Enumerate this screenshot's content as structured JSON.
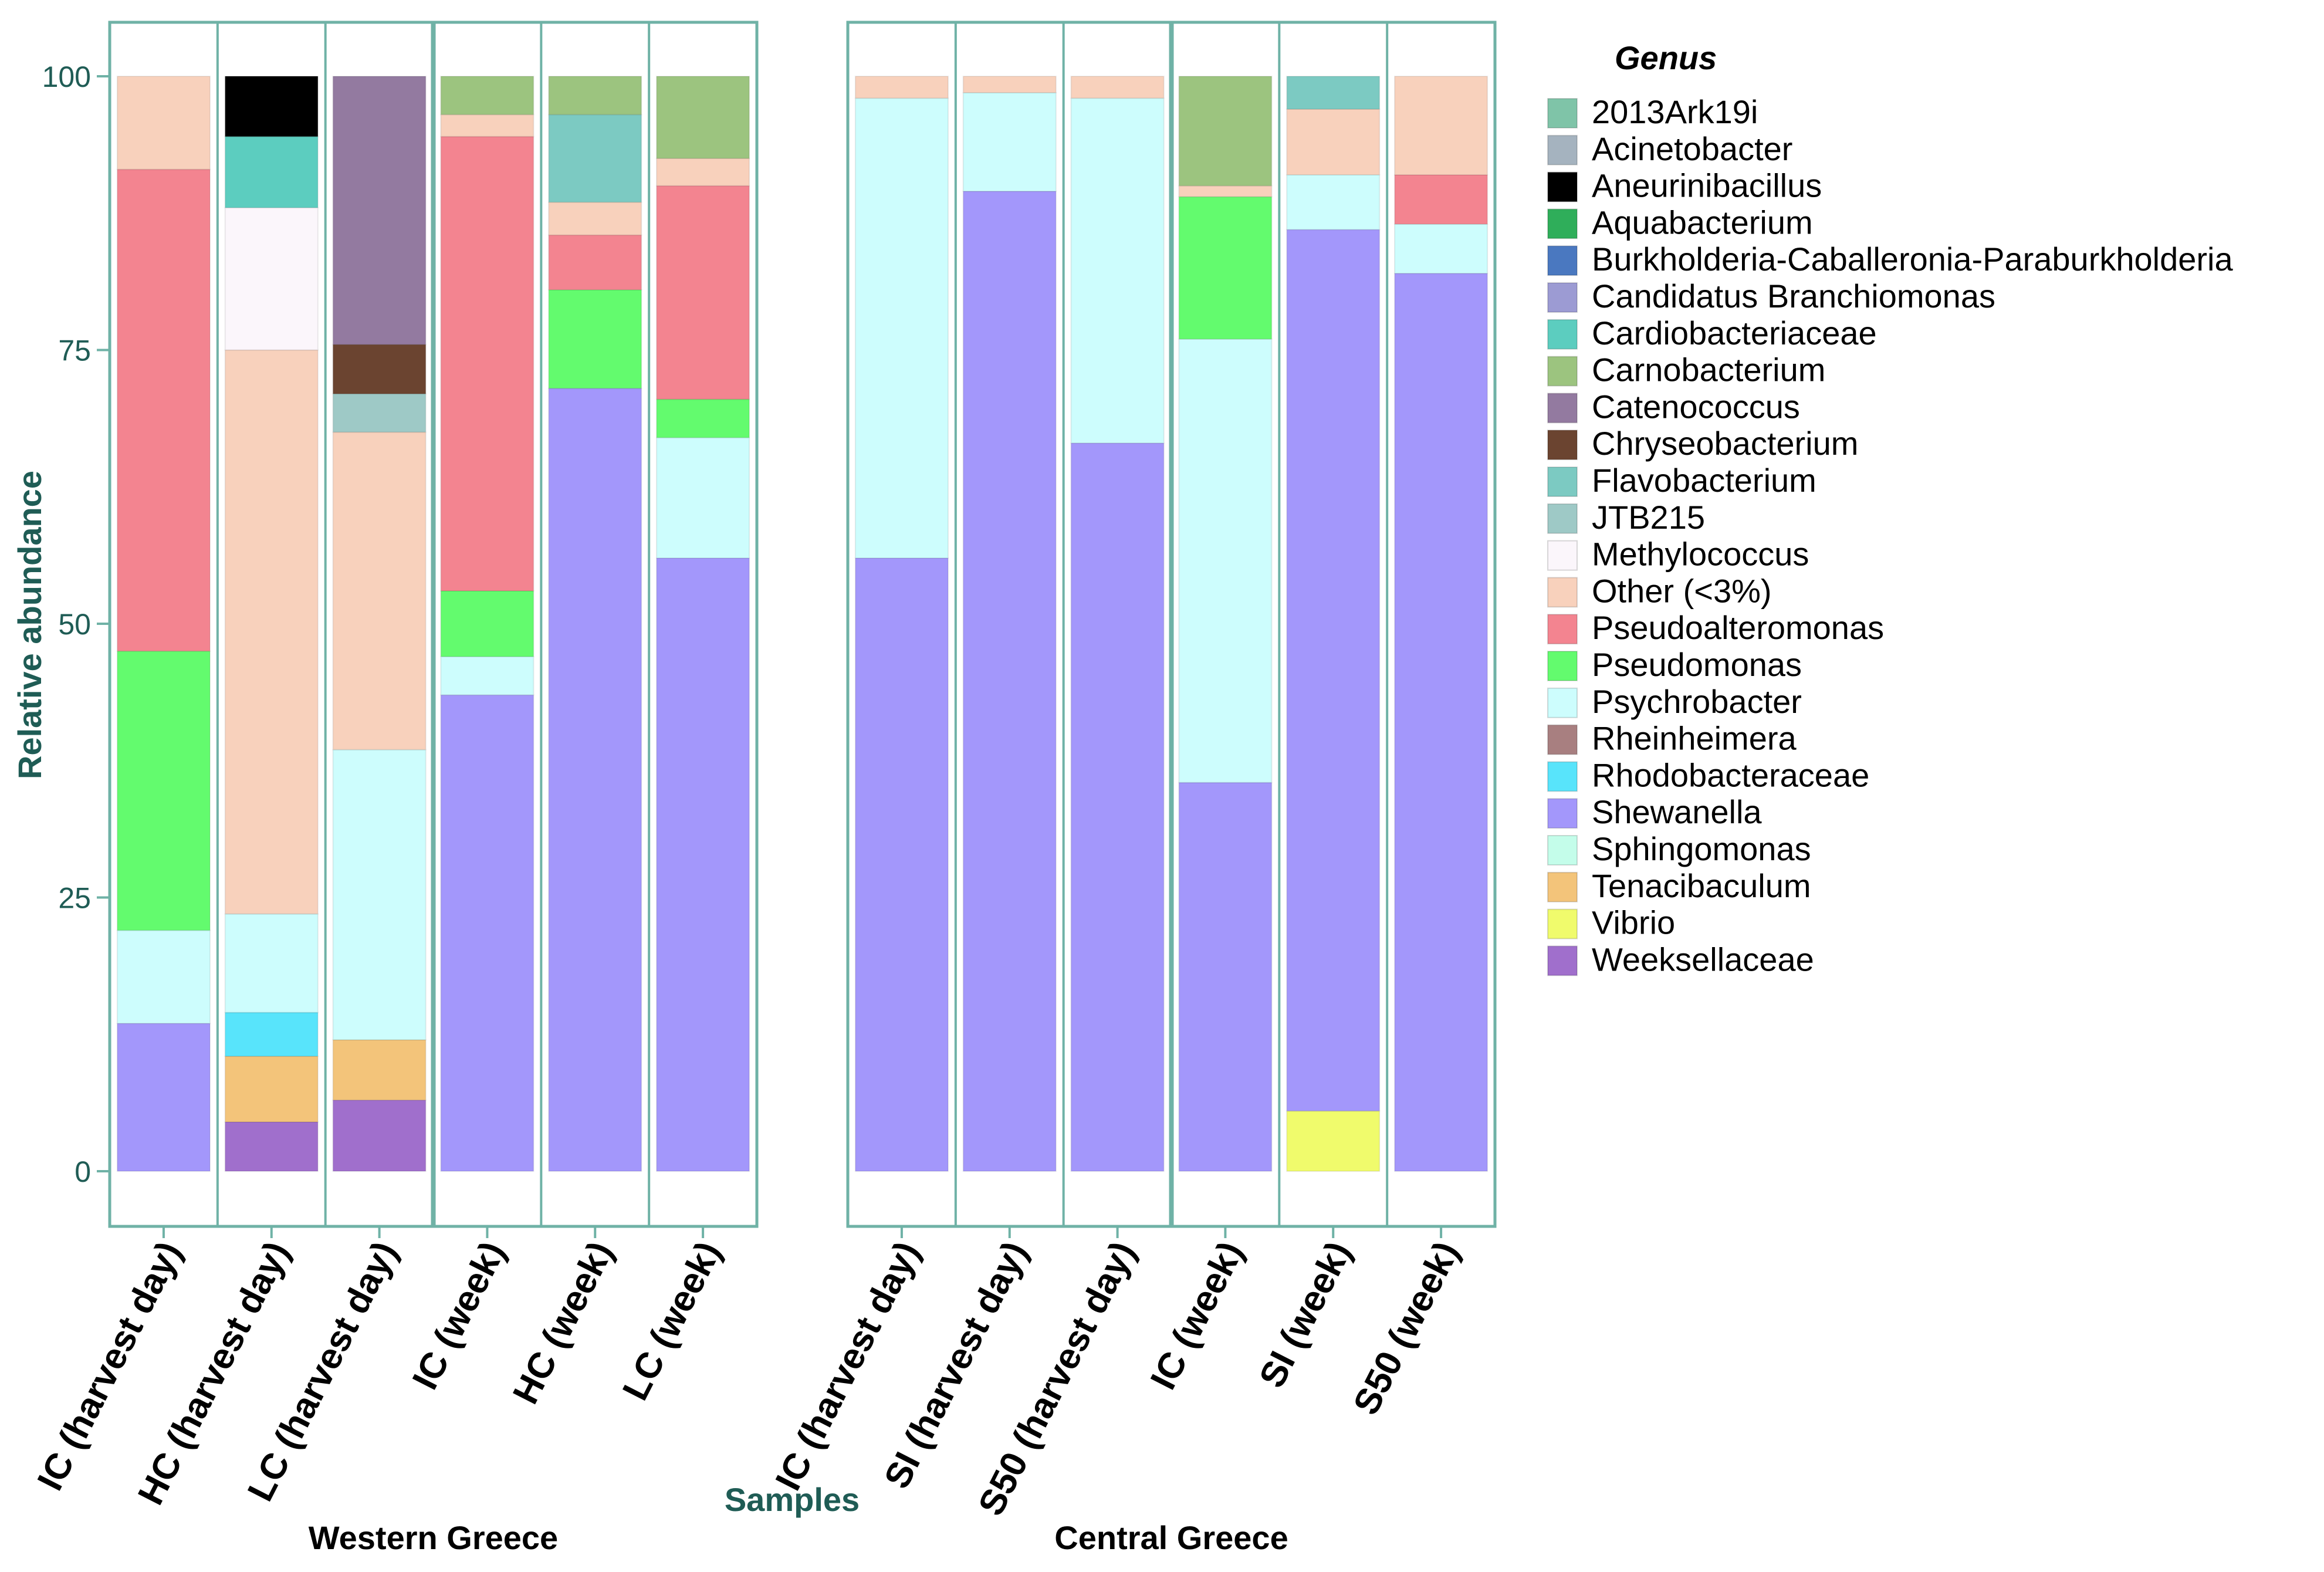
{
  "chart_data": {
    "type": "bar",
    "stacked": true,
    "ylabel": "Relative abundance",
    "xlabel": "Samples",
    "ylim": [
      0,
      100
    ],
    "yticks": [
      0,
      25,
      50,
      75,
      100
    ],
    "legend_title": "Genus",
    "legend_position": "right",
    "legend": [
      {
        "name": "2013Ark19i",
        "color": "#7fc4a8"
      },
      {
        "name": "Acinetobacter",
        "color": "#a5b3bf"
      },
      {
        "name": "Aneurinibacillus",
        "color": "#000000"
      },
      {
        "name": "Aquabacterium",
        "color": "#2fae5a"
      },
      {
        "name": "Burkholderia-Caballeronia-Paraburkholderia",
        "color": "#4a78c0"
      },
      {
        "name": "Candidatus Branchiomonas",
        "color": "#9c9bd3"
      },
      {
        "name": "Cardiobacteriaceae",
        "color": "#5ccdbf"
      },
      {
        "name": "Carnobacterium",
        "color": "#9cc47f"
      },
      {
        "name": "Catenococcus",
        "color": "#937aa0"
      },
      {
        "name": "Chryseobacterium",
        "color": "#6b4430"
      },
      {
        "name": "Flavobacterium",
        "color": "#7ccac2"
      },
      {
        "name": "JTB215",
        "color": "#9ec9c6"
      },
      {
        "name": "Methylococcus",
        "color": "#fbf6fb"
      },
      {
        "name": "Other (<3%)",
        "color": "#f8d1bc"
      },
      {
        "name": "Pseudoalteromonas",
        "color": "#f38490"
      },
      {
        "name": "Pseudomonas",
        "color": "#63fb6e"
      },
      {
        "name": "Psychrobacter",
        "color": "#cdfdfd"
      },
      {
        "name": "Rheinheimera",
        "color": "#a87f80"
      },
      {
        "name": "Rhodobacteraceae",
        "color": "#58e4fb"
      },
      {
        "name": "Shewanella",
        "color": "#a397fb"
      },
      {
        "name": "Sphingomonas",
        "color": "#c4fdea"
      },
      {
        "name": "Tenacibaculum",
        "color": "#f3c47a"
      },
      {
        "name": "Vibrio",
        "color": "#f0fb6c"
      },
      {
        "name": "Weeksellaceae",
        "color": "#a06fcc"
      }
    ],
    "groups": [
      {
        "name": "Western Greece",
        "samples": [
          {
            "label": "IC (harvest day)",
            "segments": [
              {
                "genus": "Shewanella",
                "value": 13.5
              },
              {
                "genus": "Psychrobacter",
                "value": 8.5
              },
              {
                "genus": "Pseudomonas",
                "value": 25.5
              },
              {
                "genus": "Pseudoalteromonas",
                "value": 44
              },
              {
                "genus": "Other (<3%)",
                "value": 8.5
              }
            ]
          },
          {
            "label": "HC (harvest day)",
            "segments": [
              {
                "genus": "Weeksellaceae",
                "value": 4.5
              },
              {
                "genus": "Tenacibaculum",
                "value": 6
              },
              {
                "genus": "Rhodobacteraceae",
                "value": 4
              },
              {
                "genus": "Psychrobacter",
                "value": 9
              },
              {
                "genus": "Other (<3%)",
                "value": 51.5
              },
              {
                "genus": "Methylococcus",
                "value": 13
              },
              {
                "genus": "Cardiobacteriaceae",
                "value": 6.5
              },
              {
                "genus": "Aneurinibacillus",
                "value": 5.5
              }
            ]
          },
          {
            "label": "LC (harvest day)",
            "segments": [
              {
                "genus": "Weeksellaceae",
                "value": 6.5
              },
              {
                "genus": "Tenacibaculum",
                "value": 5.5
              },
              {
                "genus": "Psychrobacter",
                "value": 26.5
              },
              {
                "genus": "Other (<3%)",
                "value": 29
              },
              {
                "genus": "JTB215",
                "value": 3.5
              },
              {
                "genus": "Chryseobacterium",
                "value": 4.5
              },
              {
                "genus": "Catenococcus",
                "value": 24.5
              }
            ]
          },
          {
            "label": "IC (week)",
            "segments": [
              {
                "genus": "Shewanella",
                "value": 43.5
              },
              {
                "genus": "Psychrobacter",
                "value": 3.5
              },
              {
                "genus": "Pseudomonas",
                "value": 6
              },
              {
                "genus": "Pseudoalteromonas",
                "value": 41.5
              },
              {
                "genus": "Other (<3%)",
                "value": 2
              },
              {
                "genus": "Carnobacterium",
                "value": 3.5
              }
            ]
          },
          {
            "label": "HC (week)",
            "segments": [
              {
                "genus": "Shewanella",
                "value": 71.5
              },
              {
                "genus": "Pseudomonas",
                "value": 9
              },
              {
                "genus": "Pseudoalteromonas",
                "value": 5
              },
              {
                "genus": "Other (<3%)",
                "value": 3
              },
              {
                "genus": "Flavobacterium",
                "value": 8
              },
              {
                "genus": "Carnobacterium",
                "value": 3.5
              }
            ]
          },
          {
            "label": "LC (week)",
            "segments": [
              {
                "genus": "Shewanella",
                "value": 56
              },
              {
                "genus": "Psychrobacter",
                "value": 11
              },
              {
                "genus": "Pseudomonas",
                "value": 3.5
              },
              {
                "genus": "Pseudoalteromonas",
                "value": 19.5
              },
              {
                "genus": "Other (<3%)",
                "value": 2.5
              },
              {
                "genus": "Carnobacterium",
                "value": 7.5
              }
            ]
          }
        ]
      },
      {
        "name": "Central Greece",
        "samples": [
          {
            "label": "IC (harvest day)",
            "segments": [
              {
                "genus": "Shewanella",
                "value": 56
              },
              {
                "genus": "Psychrobacter",
                "value": 42
              },
              {
                "genus": "Other (<3%)",
                "value": 2
              }
            ]
          },
          {
            "label": "SI (harvest day)",
            "segments": [
              {
                "genus": "Shewanella",
                "value": 89.5
              },
              {
                "genus": "Psychrobacter",
                "value": 9
              },
              {
                "genus": "Other (<3%)",
                "value": 1.5
              }
            ]
          },
          {
            "label": "S50 (harvest day)",
            "segments": [
              {
                "genus": "Shewanella",
                "value": 66.5
              },
              {
                "genus": "Psychrobacter",
                "value": 31.5
              },
              {
                "genus": "Other (<3%)",
                "value": 2
              }
            ]
          },
          {
            "label": "IC (week)",
            "segments": [
              {
                "genus": "Shewanella",
                "value": 35.5
              },
              {
                "genus": "Psychrobacter",
                "value": 40.5
              },
              {
                "genus": "Pseudomonas",
                "value": 13
              },
              {
                "genus": "Other (<3%)",
                "value": 1
              },
              {
                "genus": "Carnobacterium",
                "value": 10
              }
            ]
          },
          {
            "label": "SI (week)",
            "segments": [
              {
                "genus": "Vibrio",
                "value": 5.5
              },
              {
                "genus": "Shewanella",
                "value": 80.5
              },
              {
                "genus": "Psychrobacter",
                "value": 5
              },
              {
                "genus": "Other (<3%)",
                "value": 6
              },
              {
                "genus": "Flavobacterium",
                "value": 3
              }
            ]
          },
          {
            "label": "S50 (week)",
            "segments": [
              {
                "genus": "Shewanella",
                "value": 82
              },
              {
                "genus": "Psychrobacter",
                "value": 4.5
              },
              {
                "genus": "Pseudoalteromonas",
                "value": 4.5
              },
              {
                "genus": "Other (<3%)",
                "value": 9
              }
            ]
          }
        ]
      }
    ]
  }
}
